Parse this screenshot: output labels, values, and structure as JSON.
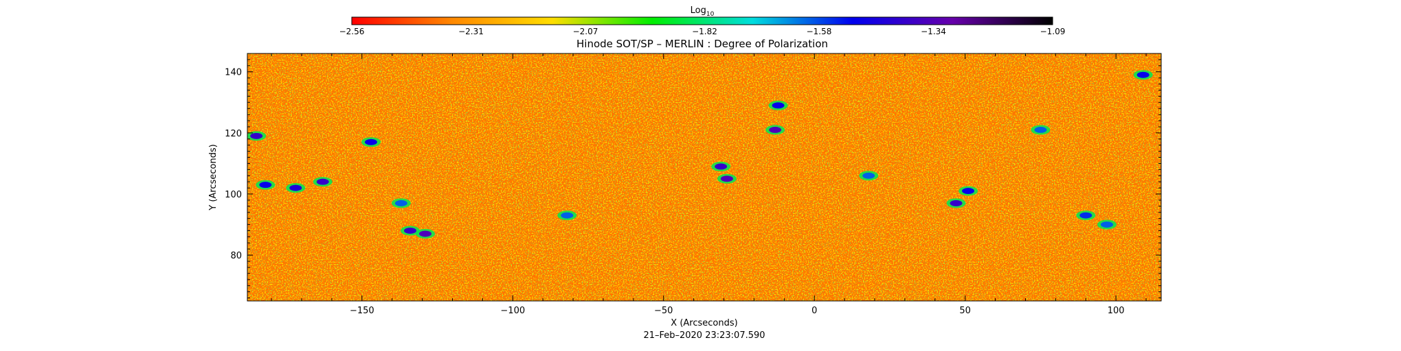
{
  "chart_data": {
    "type": "heatmap",
    "title": "Hinode SOT/SP – MERLIN : Degree of Polarization",
    "xlabel": "X (Arcseconds)",
    "ylabel": "Y (Arcseconds)",
    "xlim": [
      -188,
      115
    ],
    "ylim": [
      65,
      146
    ],
    "x_ticks": [
      -150,
      -100,
      -50,
      0,
      50,
      100
    ],
    "x_tick_labels": [
      "−150",
      "−100",
      "−50",
      "0",
      "50",
      "100"
    ],
    "y_ticks": [
      80,
      100,
      120,
      140
    ],
    "y_tick_labels": [
      "80",
      "100",
      "120",
      "140"
    ],
    "timestamp": "21–Feb–2020 23:23:07.590",
    "colorbar": {
      "label_base": "Log",
      "label_sub": "10",
      "min": -2.56,
      "max": -1.09,
      "tick_values": [
        -2.56,
        -2.31,
        -2.07,
        -1.82,
        -1.58,
        -1.34,
        -1.09
      ],
      "tick_labels": [
        "−2.56",
        "−2.31",
        "−2.07",
        "−1.82",
        "−1.58",
        "−1.34",
        "−1.09"
      ],
      "colors": [
        "#ff0000",
        "#ff8800",
        "#ffdd00",
        "#00ee00",
        "#00dddd",
        "#0000ee",
        "#6600aa",
        "#000000"
      ]
    },
    "background_level": -2.38,
    "structures": [
      {
        "x": -182,
        "y": 103,
        "level": -1.5
      },
      {
        "x": -172,
        "y": 102,
        "level": -1.45
      },
      {
        "x": -163,
        "y": 104,
        "level": -1.4
      },
      {
        "x": -185,
        "y": 119,
        "level": -1.4
      },
      {
        "x": -147,
        "y": 117,
        "level": -1.5
      },
      {
        "x": -134,
        "y": 88,
        "level": -1.4
      },
      {
        "x": -129,
        "y": 87,
        "level": -1.35
      },
      {
        "x": -137,
        "y": 97,
        "level": -1.6
      },
      {
        "x": -31,
        "y": 109,
        "level": -1.4
      },
      {
        "x": -29,
        "y": 105,
        "level": -1.35
      },
      {
        "x": -13,
        "y": 121,
        "level": -1.35
      },
      {
        "x": -12,
        "y": 129,
        "level": -1.5
      },
      {
        "x": 47,
        "y": 97,
        "level": -1.4
      },
      {
        "x": 51,
        "y": 101,
        "level": -1.5
      },
      {
        "x": 90,
        "y": 93,
        "level": -1.55
      },
      {
        "x": 97,
        "y": 90,
        "level": -1.6
      },
      {
        "x": -82,
        "y": 93,
        "level": -1.6
      },
      {
        "x": 18,
        "y": 106,
        "level": -1.6
      },
      {
        "x": 75,
        "y": 121,
        "level": -1.6
      },
      {
        "x": 109,
        "y": 139,
        "level": -1.5
      }
    ]
  }
}
